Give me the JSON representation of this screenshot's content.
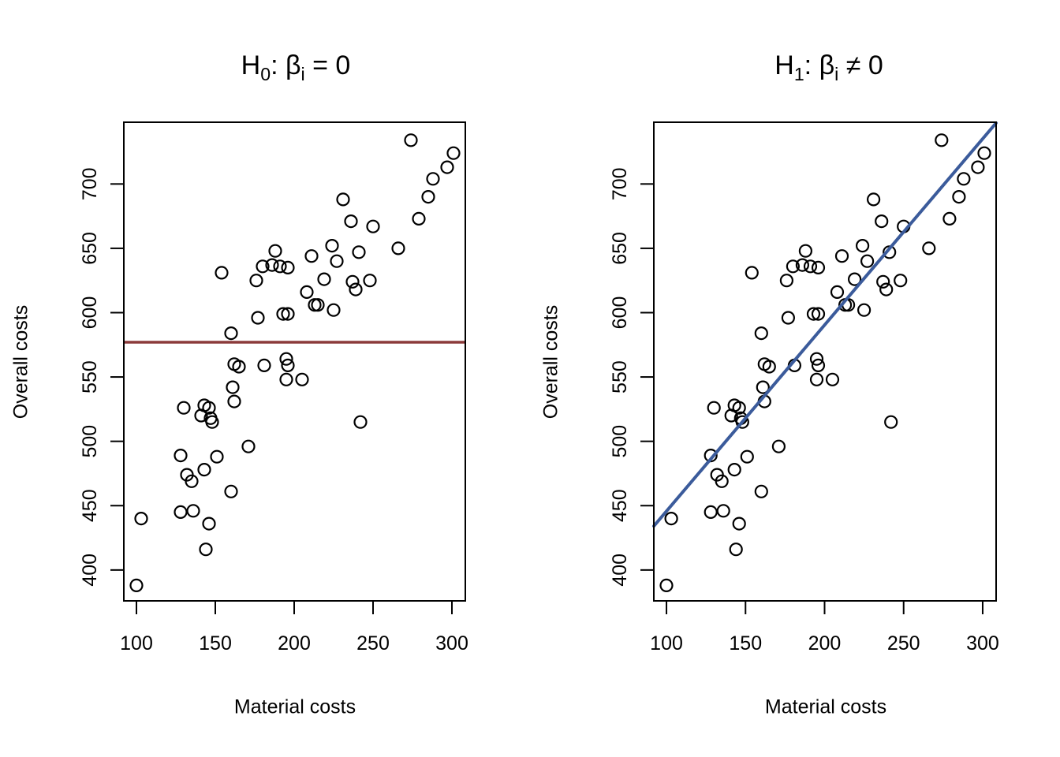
{
  "figure": {
    "background_color": "#ffffff",
    "point_outline_color": "#000000"
  },
  "chart_data": [
    {
      "type": "scatter",
      "title": "H0: βi = 0",
      "title_parts": {
        "lead": "H",
        "lead_sub": "0",
        "mid": ": β",
        "mid_sub": "i",
        "tail": " = 0"
      },
      "xlabel": "Material costs",
      "ylabel": "Overall costs",
      "xlim": [
        92,
        308.5
      ],
      "ylim": [
        376,
        748
      ],
      "xticks": [
        100,
        150,
        200,
        250,
        300
      ],
      "yticks": [
        400,
        450,
        500,
        550,
        600,
        650,
        700
      ],
      "grid": false,
      "legend": null,
      "overlay_line": {
        "kind": "mean",
        "y": 577,
        "color": "#8B3A3A",
        "width": 3.5
      },
      "points": [
        [
          274,
          734
        ],
        [
          301,
          724
        ],
        [
          297,
          713
        ],
        [
          288,
          704
        ],
        [
          285,
          690
        ],
        [
          231,
          688
        ],
        [
          236,
          671
        ],
        [
          250,
          667
        ],
        [
          279,
          673
        ],
        [
          188,
          648
        ],
        [
          224,
          652
        ],
        [
          241,
          647
        ],
        [
          266,
          650
        ],
        [
          211,
          644
        ],
        [
          227,
          640
        ],
        [
          180,
          636
        ],
        [
          186,
          637
        ],
        [
          191,
          636
        ],
        [
          196,
          635
        ],
        [
          154,
          631
        ],
        [
          176,
          625
        ],
        [
          219,
          626
        ],
        [
          237,
          624
        ],
        [
          248,
          625
        ],
        [
          239,
          618
        ],
        [
          208,
          616
        ],
        [
          213,
          606
        ],
        [
          215,
          606
        ],
        [
          225,
          602
        ],
        [
          193,
          599
        ],
        [
          196,
          599
        ],
        [
          177,
          596
        ],
        [
          160,
          584
        ],
        [
          162,
          560
        ],
        [
          165,
          558
        ],
        [
          181,
          559
        ],
        [
          195,
          564
        ],
        [
          196,
          559
        ],
        [
          195,
          548
        ],
        [
          205,
          548
        ],
        [
          161,
          542
        ],
        [
          162,
          531
        ],
        [
          130,
          526
        ],
        [
          143,
          528
        ],
        [
          146,
          526
        ],
        [
          141,
          520
        ],
        [
          147,
          518
        ],
        [
          148,
          515
        ],
        [
          242,
          515
        ],
        [
          171,
          496
        ],
        [
          128,
          489
        ],
        [
          151,
          488
        ],
        [
          143,
          478
        ],
        [
          132,
          474
        ],
        [
          135,
          469
        ],
        [
          160,
          461
        ],
        [
          128,
          445
        ],
        [
          136,
          446
        ],
        [
          103,
          440
        ],
        [
          146,
          436
        ],
        [
          144,
          416
        ],
        [
          100,
          388
        ]
      ]
    },
    {
      "type": "scatter",
      "title": "H1: βi ≠ 0",
      "title_parts": {
        "lead": "H",
        "lead_sub": "1",
        "mid": ": β",
        "mid_sub": "i",
        "tail": " ≠ 0"
      },
      "xlabel": "Material costs",
      "ylabel": "Overall costs",
      "xlim": [
        92,
        308.5
      ],
      "ylim": [
        376,
        748
      ],
      "xticks": [
        100,
        150,
        200,
        250,
        300
      ],
      "yticks": [
        400,
        450,
        500,
        550,
        600,
        650,
        700
      ],
      "grid": false,
      "legend": null,
      "overlay_line": {
        "kind": "regression",
        "intercept": 301,
        "slope": 1.447,
        "color": "#3B5B9B",
        "width": 4
      },
      "points": [
        [
          274,
          734
        ],
        [
          301,
          724
        ],
        [
          297,
          713
        ],
        [
          288,
          704
        ],
        [
          285,
          690
        ],
        [
          231,
          688
        ],
        [
          236,
          671
        ],
        [
          250,
          667
        ],
        [
          279,
          673
        ],
        [
          188,
          648
        ],
        [
          224,
          652
        ],
        [
          241,
          647
        ],
        [
          266,
          650
        ],
        [
          211,
          644
        ],
        [
          227,
          640
        ],
        [
          180,
          636
        ],
        [
          186,
          637
        ],
        [
          191,
          636
        ],
        [
          196,
          635
        ],
        [
          154,
          631
        ],
        [
          176,
          625
        ],
        [
          219,
          626
        ],
        [
          237,
          624
        ],
        [
          248,
          625
        ],
        [
          239,
          618
        ],
        [
          208,
          616
        ],
        [
          213,
          606
        ],
        [
          215,
          606
        ],
        [
          225,
          602
        ],
        [
          193,
          599
        ],
        [
          196,
          599
        ],
        [
          177,
          596
        ],
        [
          160,
          584
        ],
        [
          162,
          560
        ],
        [
          165,
          558
        ],
        [
          181,
          559
        ],
        [
          195,
          564
        ],
        [
          196,
          559
        ],
        [
          195,
          548
        ],
        [
          205,
          548
        ],
        [
          161,
          542
        ],
        [
          162,
          531
        ],
        [
          130,
          526
        ],
        [
          143,
          528
        ],
        [
          146,
          526
        ],
        [
          141,
          520
        ],
        [
          147,
          518
        ],
        [
          148,
          515
        ],
        [
          242,
          515
        ],
        [
          171,
          496
        ],
        [
          128,
          489
        ],
        [
          151,
          488
        ],
        [
          143,
          478
        ],
        [
          132,
          474
        ],
        [
          135,
          469
        ],
        [
          160,
          461
        ],
        [
          128,
          445
        ],
        [
          136,
          446
        ],
        [
          103,
          440
        ],
        [
          146,
          436
        ],
        [
          144,
          416
        ],
        [
          100,
          388
        ]
      ]
    }
  ]
}
